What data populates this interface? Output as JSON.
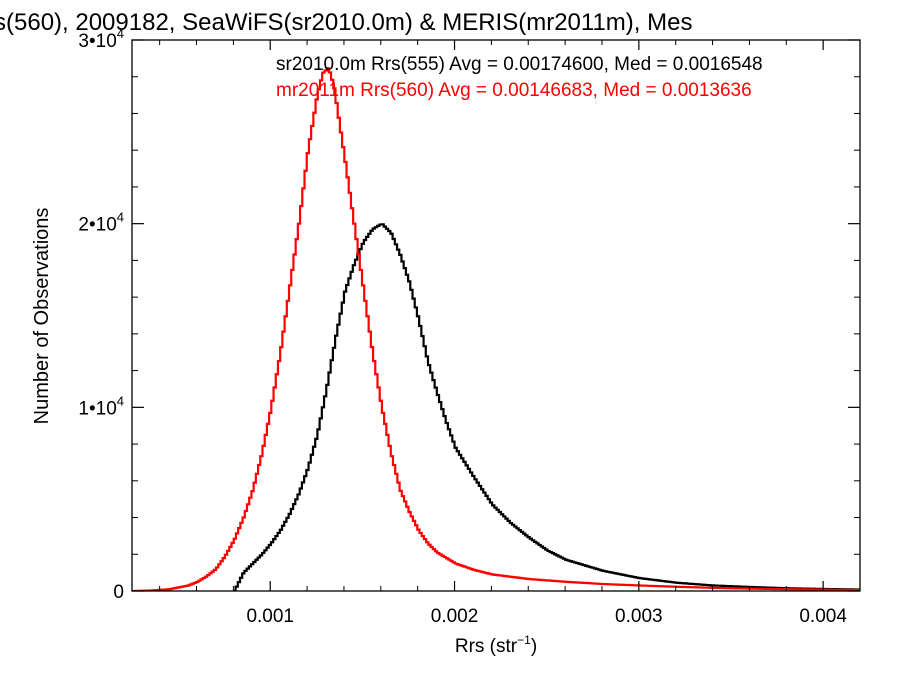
{
  "chart_data": {
    "type": "line",
    "title": "s(560), 2009182, SeaWiFS(sr2010.0m) & MERIS(mr2011m), Mes",
    "xlabel_main": "Rrs (str",
    "xlabel_sup": "−1",
    "xlabel_close": ")",
    "ylabel": "Number of Observations",
    "xlim": [
      0.00025,
      0.0042
    ],
    "ylim": [
      0,
      30000
    ],
    "x_ticks": [
      {
        "value": 0.001,
        "label": "0.001"
      },
      {
        "value": 0.002,
        "label": "0.002"
      },
      {
        "value": 0.003,
        "label": "0.003"
      },
      {
        "value": 0.004,
        "label": "0.004"
      }
    ],
    "y_ticks": [
      {
        "value": 0,
        "mant": "0",
        "exp": ""
      },
      {
        "value": 10000,
        "mant": "1•10",
        "exp": "4"
      },
      {
        "value": 20000,
        "mant": "2•10",
        "exp": "4"
      },
      {
        "value": 30000,
        "mant": "3•10",
        "exp": "4"
      }
    ],
    "grid": false,
    "legend_position": "top-right",
    "series": [
      {
        "name": "sr2010.0m Rrs(555) Avg = 0.00174600, Med = 0.0016548",
        "color": "#000000",
        "x": [
          0.0008,
          0.00085,
          0.0009,
          0.00095,
          0.001,
          0.00105,
          0.0011,
          0.00115,
          0.0012,
          0.00125,
          0.0013,
          0.00135,
          0.0014,
          0.00145,
          0.0015,
          0.00155,
          0.0016,
          0.00165,
          0.0017,
          0.00175,
          0.0018,
          0.00185,
          0.0019,
          0.00195,
          0.002,
          0.0021,
          0.0022,
          0.0023,
          0.0024,
          0.0025,
          0.0026,
          0.0028,
          0.003,
          0.0032,
          0.0034,
          0.0036,
          0.0038,
          0.004,
          0.0042
        ],
        "values": [
          0,
          1000,
          1500,
          2000,
          2600,
          3300,
          4200,
          5300,
          6700,
          8500,
          11000,
          13800,
          16300,
          17800,
          19000,
          19700,
          20000,
          19500,
          18300,
          16800,
          14800,
          12500,
          10800,
          9200,
          7800,
          6200,
          4700,
          3700,
          2900,
          2200,
          1700,
          1100,
          700,
          450,
          300,
          220,
          150,
          110,
          80
        ]
      },
      {
        "name": "mr2011m Rrs(560) Avg = 0.00146683, Med = 0.0013636",
        "color": "#ff0000",
        "x": [
          0.00025,
          0.00035,
          0.00045,
          0.00055,
          0.0006,
          0.00065,
          0.0007,
          0.00075,
          0.0008,
          0.00085,
          0.0009,
          0.00095,
          0.001,
          0.00105,
          0.0011,
          0.00115,
          0.0012,
          0.00125,
          0.00128,
          0.00131,
          0.00134,
          0.00137,
          0.0014,
          0.00145,
          0.0015,
          0.00155,
          0.0016,
          0.00165,
          0.0017,
          0.00175,
          0.0018,
          0.00185,
          0.0019,
          0.002,
          0.0021,
          0.0022,
          0.0024,
          0.0026,
          0.0028,
          0.003,
          0.0032,
          0.0034,
          0.0036,
          0.0038,
          0.004,
          0.0042
        ],
        "values": [
          0,
          30,
          100,
          300,
          500,
          800,
          1200,
          1900,
          2800,
          4000,
          5500,
          7500,
          10000,
          13000,
          16500,
          20000,
          24000,
          27000,
          28200,
          28500,
          27500,
          25500,
          23500,
          20000,
          16500,
          13000,
          10000,
          7500,
          5500,
          4300,
          3300,
          2600,
          2100,
          1500,
          1150,
          900,
          650,
          500,
          380,
          300,
          230,
          170,
          130,
          100,
          70,
          50
        ]
      }
    ]
  }
}
